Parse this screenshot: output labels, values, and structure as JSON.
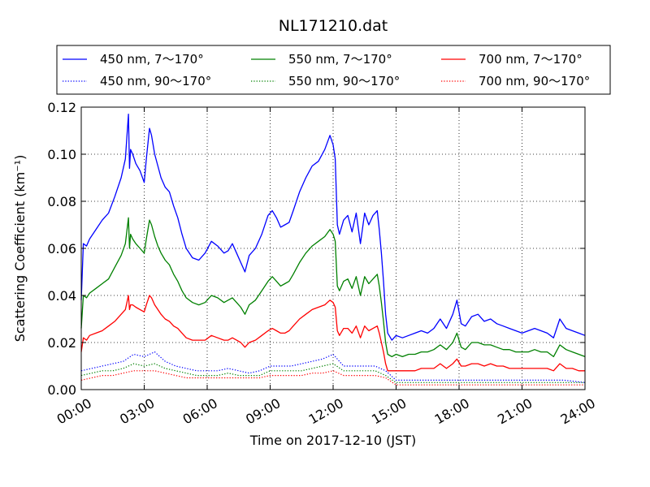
{
  "chart_data": {
    "type": "line",
    "title": "NL171210.dat",
    "xlabel": "Time on 2017-12-10 (JST)",
    "ylabel": "Scattering Coefficient (km⁻¹)",
    "xlim": [
      0,
      24
    ],
    "ylim": [
      0,
      0.12
    ],
    "x_tick_labels": [
      "00:00",
      "03:00",
      "06:00",
      "09:00",
      "12:00",
      "15:00",
      "18:00",
      "21:00",
      "24:00"
    ],
    "y_tick_labels": [
      "0.00",
      "0.02",
      "0.04",
      "0.06",
      "0.08",
      "0.10",
      "0.12"
    ],
    "grid": true,
    "legend_placement": "top-outside",
    "x_unit": "hours",
    "series": [
      {
        "name": "450 nm, 7～170°",
        "color": "#0000ff",
        "style": "solid",
        "x": [
          0,
          0.1,
          0.25,
          0.4,
          0.7,
          1.0,
          1.3,
          1.6,
          1.9,
          2.1,
          2.25,
          2.3,
          2.35,
          2.45,
          2.6,
          2.8,
          3.0,
          3.1,
          3.25,
          3.35,
          3.5,
          3.65,
          3.8,
          4.0,
          4.2,
          4.4,
          4.6,
          4.8,
          5.0,
          5.3,
          5.6,
          5.9,
          6.2,
          6.5,
          6.8,
          7.0,
          7.2,
          7.4,
          7.6,
          7.8,
          8.0,
          8.3,
          8.6,
          8.9,
          9.1,
          9.3,
          9.5,
          9.7,
          9.9,
          10.1,
          10.4,
          10.7,
          11.0,
          11.3,
          11.6,
          11.85,
          12.0,
          12.1,
          12.2,
          12.3,
          12.5,
          12.7,
          12.9,
          13.1,
          13.3,
          13.5,
          13.7,
          13.9,
          14.1,
          14.2,
          14.3,
          14.4,
          14.5,
          14.6,
          14.8,
          15.0,
          15.3,
          15.6,
          15.9,
          16.2,
          16.5,
          16.8,
          17.1,
          17.4,
          17.7,
          17.9,
          18.1,
          18.3,
          18.6,
          18.9,
          19.2,
          19.5,
          19.8,
          20.1,
          20.4,
          20.7,
          21.0,
          21.3,
          21.6,
          21.9,
          22.2,
          22.5,
          22.8,
          23.1,
          23.4,
          23.7,
          24.0
        ],
        "y": [
          0.038,
          0.062,
          0.061,
          0.064,
          0.068,
          0.072,
          0.075,
          0.082,
          0.09,
          0.098,
          0.117,
          0.094,
          0.102,
          0.1,
          0.096,
          0.093,
          0.088,
          0.098,
          0.111,
          0.108,
          0.1,
          0.095,
          0.09,
          0.086,
          0.084,
          0.078,
          0.073,
          0.066,
          0.06,
          0.056,
          0.055,
          0.058,
          0.063,
          0.061,
          0.058,
          0.059,
          0.062,
          0.058,
          0.054,
          0.05,
          0.057,
          0.06,
          0.066,
          0.074,
          0.076,
          0.073,
          0.069,
          0.07,
          0.071,
          0.076,
          0.084,
          0.09,
          0.095,
          0.097,
          0.102,
          0.108,
          0.104,
          0.098,
          0.07,
          0.066,
          0.072,
          0.074,
          0.067,
          0.075,
          0.062,
          0.075,
          0.07,
          0.074,
          0.076,
          0.068,
          0.058,
          0.046,
          0.032,
          0.024,
          0.021,
          0.023,
          0.022,
          0.023,
          0.024,
          0.025,
          0.024,
          0.026,
          0.03,
          0.026,
          0.032,
          0.038,
          0.028,
          0.027,
          0.031,
          0.032,
          0.029,
          0.03,
          0.028,
          0.027,
          0.026,
          0.025,
          0.024,
          0.025,
          0.026,
          0.025,
          0.024,
          0.022,
          0.03,
          0.026,
          0.025,
          0.024,
          0.023
        ]
      },
      {
        "name": "550 nm, 7～170°",
        "color": "#008000",
        "style": "solid",
        "x": [
          0,
          0.1,
          0.25,
          0.4,
          0.7,
          1.0,
          1.3,
          1.6,
          1.9,
          2.1,
          2.25,
          2.3,
          2.35,
          2.45,
          2.6,
          2.8,
          3.0,
          3.1,
          3.25,
          3.35,
          3.5,
          3.65,
          3.8,
          4.0,
          4.2,
          4.4,
          4.6,
          4.8,
          5.0,
          5.3,
          5.6,
          5.9,
          6.2,
          6.5,
          6.8,
          7.0,
          7.2,
          7.4,
          7.6,
          7.8,
          8.0,
          8.3,
          8.6,
          8.9,
          9.1,
          9.3,
          9.5,
          9.7,
          9.9,
          10.1,
          10.4,
          10.7,
          11.0,
          11.3,
          11.6,
          11.85,
          12.0,
          12.1,
          12.2,
          12.3,
          12.5,
          12.7,
          12.9,
          13.1,
          13.3,
          13.5,
          13.7,
          13.9,
          14.1,
          14.2,
          14.3,
          14.4,
          14.5,
          14.6,
          14.8,
          15.0,
          15.3,
          15.6,
          15.9,
          16.2,
          16.5,
          16.8,
          17.1,
          17.4,
          17.7,
          17.9,
          18.1,
          18.3,
          18.6,
          18.9,
          19.2,
          19.5,
          19.8,
          20.1,
          20.4,
          20.7,
          21.0,
          21.3,
          21.6,
          21.9,
          22.2,
          22.5,
          22.8,
          23.1,
          23.4,
          23.7,
          24.0
        ],
        "y": [
          0.026,
          0.04,
          0.039,
          0.041,
          0.043,
          0.045,
          0.047,
          0.052,
          0.057,
          0.062,
          0.073,
          0.06,
          0.066,
          0.064,
          0.062,
          0.06,
          0.058,
          0.064,
          0.072,
          0.07,
          0.065,
          0.061,
          0.058,
          0.055,
          0.053,
          0.049,
          0.046,
          0.042,
          0.039,
          0.037,
          0.036,
          0.037,
          0.04,
          0.039,
          0.037,
          0.038,
          0.039,
          0.037,
          0.035,
          0.032,
          0.036,
          0.038,
          0.042,
          0.046,
          0.048,
          0.046,
          0.044,
          0.045,
          0.046,
          0.049,
          0.054,
          0.058,
          0.061,
          0.063,
          0.065,
          0.068,
          0.066,
          0.063,
          0.044,
          0.042,
          0.046,
          0.047,
          0.043,
          0.048,
          0.04,
          0.048,
          0.045,
          0.047,
          0.049,
          0.044,
          0.037,
          0.029,
          0.02,
          0.015,
          0.014,
          0.015,
          0.014,
          0.015,
          0.015,
          0.016,
          0.016,
          0.017,
          0.019,
          0.017,
          0.02,
          0.024,
          0.018,
          0.017,
          0.02,
          0.02,
          0.019,
          0.019,
          0.018,
          0.017,
          0.017,
          0.016,
          0.016,
          0.016,
          0.017,
          0.016,
          0.016,
          0.014,
          0.019,
          0.017,
          0.016,
          0.015,
          0.014
        ]
      },
      {
        "name": "700 nm, 7～170°",
        "color": "#ff0000",
        "style": "solid",
        "x": [
          0,
          0.1,
          0.25,
          0.4,
          0.7,
          1.0,
          1.3,
          1.6,
          1.9,
          2.1,
          2.25,
          2.3,
          2.35,
          2.45,
          2.6,
          2.8,
          3.0,
          3.1,
          3.25,
          3.35,
          3.5,
          3.65,
          3.8,
          4.0,
          4.2,
          4.4,
          4.6,
          4.8,
          5.0,
          5.3,
          5.6,
          5.9,
          6.2,
          6.5,
          6.8,
          7.0,
          7.2,
          7.4,
          7.6,
          7.8,
          8.0,
          8.3,
          8.6,
          8.9,
          9.1,
          9.3,
          9.5,
          9.7,
          9.9,
          10.1,
          10.4,
          10.7,
          11.0,
          11.3,
          11.6,
          11.85,
          12.0,
          12.1,
          12.2,
          12.3,
          12.5,
          12.7,
          12.9,
          13.1,
          13.3,
          13.5,
          13.7,
          13.9,
          14.1,
          14.2,
          14.3,
          14.4,
          14.5,
          14.6,
          14.8,
          15.0,
          15.3,
          15.6,
          15.9,
          16.2,
          16.5,
          16.8,
          17.1,
          17.4,
          17.7,
          17.9,
          18.1,
          18.3,
          18.6,
          18.9,
          19.2,
          19.5,
          19.8,
          20.1,
          20.4,
          20.7,
          21.0,
          21.3,
          21.6,
          21.9,
          22.2,
          22.5,
          22.8,
          23.1,
          23.4,
          23.7,
          24.0
        ],
        "y": [
          0.016,
          0.022,
          0.021,
          0.023,
          0.024,
          0.025,
          0.027,
          0.029,
          0.032,
          0.034,
          0.04,
          0.034,
          0.036,
          0.036,
          0.035,
          0.034,
          0.033,
          0.036,
          0.04,
          0.039,
          0.036,
          0.034,
          0.032,
          0.03,
          0.029,
          0.027,
          0.026,
          0.024,
          0.022,
          0.021,
          0.021,
          0.021,
          0.023,
          0.022,
          0.021,
          0.021,
          0.022,
          0.021,
          0.02,
          0.018,
          0.02,
          0.021,
          0.023,
          0.025,
          0.026,
          0.025,
          0.024,
          0.024,
          0.025,
          0.027,
          0.03,
          0.032,
          0.034,
          0.035,
          0.036,
          0.038,
          0.037,
          0.035,
          0.025,
          0.023,
          0.026,
          0.026,
          0.024,
          0.027,
          0.022,
          0.027,
          0.025,
          0.026,
          0.027,
          0.024,
          0.02,
          0.016,
          0.011,
          0.008,
          0.008,
          0.008,
          0.008,
          0.008,
          0.008,
          0.009,
          0.009,
          0.009,
          0.011,
          0.009,
          0.011,
          0.013,
          0.01,
          0.01,
          0.011,
          0.011,
          0.01,
          0.011,
          0.01,
          0.01,
          0.009,
          0.009,
          0.009,
          0.009,
          0.009,
          0.009,
          0.009,
          0.008,
          0.011,
          0.009,
          0.009,
          0.008,
          0.008
        ]
      },
      {
        "name": "450 nm, 90～170°",
        "color": "#0000ff",
        "style": "dotted",
        "x": [
          0,
          0.5,
          1.0,
          1.5,
          2.0,
          2.5,
          3.0,
          3.5,
          4.0,
          4.5,
          5.0,
          5.5,
          6.0,
          6.5,
          7.0,
          7.5,
          8.0,
          8.5,
          9.0,
          9.5,
          10.0,
          10.5,
          11.0,
          11.5,
          12.0,
          12.5,
          13.0,
          13.5,
          14.0,
          14.5,
          15.0,
          15.5,
          16.0,
          17.0,
          18.0,
          19.0,
          20.0,
          21.0,
          22.0,
          23.0,
          24.0
        ],
        "y": [
          0.008,
          0.009,
          0.01,
          0.011,
          0.012,
          0.015,
          0.014,
          0.016,
          0.012,
          0.01,
          0.009,
          0.008,
          0.008,
          0.008,
          0.009,
          0.008,
          0.007,
          0.008,
          0.01,
          0.01,
          0.01,
          0.011,
          0.012,
          0.013,
          0.015,
          0.01,
          0.01,
          0.01,
          0.01,
          0.008,
          0.004,
          0.004,
          0.004,
          0.004,
          0.004,
          0.004,
          0.004,
          0.004,
          0.004,
          0.004,
          0.003
        ]
      },
      {
        "name": "550 nm, 90～170°",
        "color": "#008000",
        "style": "dotted",
        "x": [
          0,
          0.5,
          1.0,
          1.5,
          2.0,
          2.5,
          3.0,
          3.5,
          4.0,
          4.5,
          5.0,
          5.5,
          6.0,
          6.5,
          7.0,
          7.5,
          8.0,
          8.5,
          9.0,
          9.5,
          10.0,
          10.5,
          11.0,
          11.5,
          12.0,
          12.5,
          13.0,
          13.5,
          14.0,
          14.5,
          15.0,
          15.5,
          16.0,
          17.0,
          18.0,
          19.0,
          20.0,
          21.0,
          22.0,
          23.0,
          24.0
        ],
        "y": [
          0.006,
          0.007,
          0.008,
          0.008,
          0.009,
          0.011,
          0.01,
          0.011,
          0.009,
          0.008,
          0.007,
          0.006,
          0.006,
          0.006,
          0.007,
          0.006,
          0.006,
          0.006,
          0.008,
          0.008,
          0.008,
          0.008,
          0.009,
          0.01,
          0.011,
          0.008,
          0.008,
          0.008,
          0.008,
          0.006,
          0.003,
          0.003,
          0.003,
          0.003,
          0.003,
          0.003,
          0.003,
          0.003,
          0.003,
          0.003,
          0.003
        ]
      },
      {
        "name": "700 nm, 90～170°",
        "color": "#ff0000",
        "style": "dotted",
        "x": [
          0,
          0.5,
          1.0,
          1.5,
          2.0,
          2.5,
          3.0,
          3.5,
          4.0,
          4.5,
          5.0,
          5.5,
          6.0,
          6.5,
          7.0,
          7.5,
          8.0,
          8.5,
          9.0,
          9.5,
          10.0,
          10.5,
          11.0,
          11.5,
          12.0,
          12.5,
          13.0,
          13.5,
          14.0,
          14.5,
          15.0,
          15.5,
          16.0,
          17.0,
          18.0,
          19.0,
          20.0,
          21.0,
          22.0,
          23.0,
          24.0
        ],
        "y": [
          0.004,
          0.005,
          0.006,
          0.006,
          0.007,
          0.008,
          0.008,
          0.008,
          0.007,
          0.006,
          0.005,
          0.005,
          0.005,
          0.005,
          0.005,
          0.005,
          0.005,
          0.005,
          0.006,
          0.006,
          0.006,
          0.006,
          0.007,
          0.007,
          0.008,
          0.006,
          0.006,
          0.006,
          0.006,
          0.005,
          0.002,
          0.002,
          0.002,
          0.002,
          0.002,
          0.002,
          0.002,
          0.002,
          0.002,
          0.002,
          0.002
        ]
      }
    ],
    "legend_order": [
      0,
      1,
      2,
      3,
      4,
      5
    ]
  }
}
